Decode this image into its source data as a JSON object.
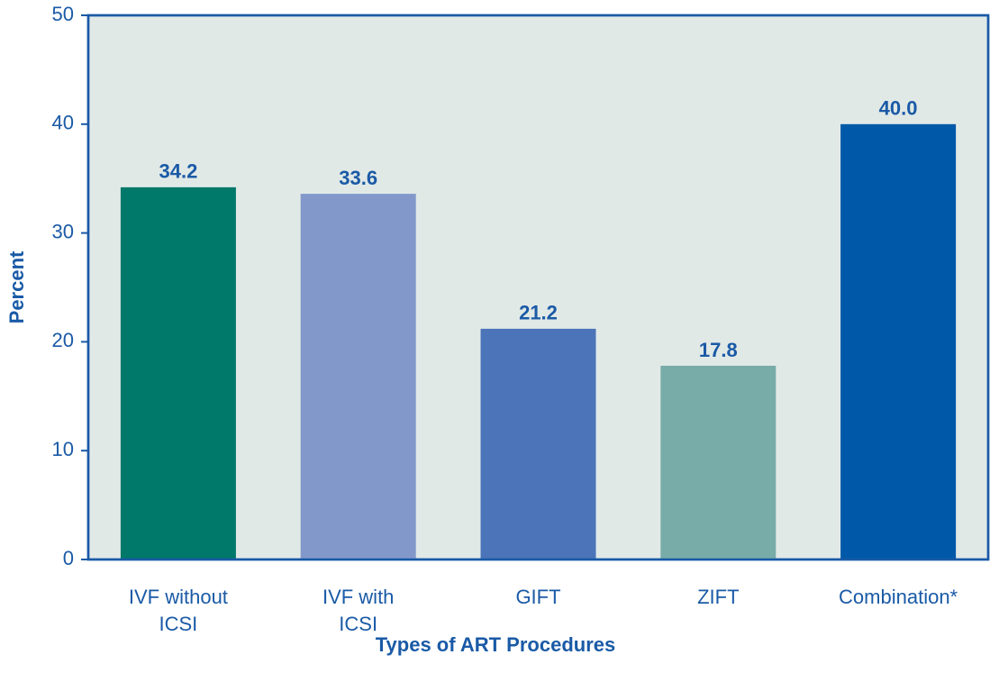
{
  "chart_data": {
    "type": "bar",
    "categories": [
      "IVF without\nICSI",
      "IVF with\nICSI",
      "GIFT",
      "ZIFT",
      "Combination*"
    ],
    "values": [
      34.2,
      33.6,
      21.2,
      17.8,
      40
    ],
    "value_labels": [
      "34.2",
      "33.6",
      "21.2",
      "17.8",
      "40.0"
    ],
    "colors": [
      "#00786a",
      "#8398ca",
      "#4b74b9",
      "#77aca9",
      "#0059a8"
    ],
    "x_label": "Types of ART Procedures",
    "y_label": "Percent",
    "ylim": [
      0,
      50
    ],
    "yticks": [
      0,
      10,
      20,
      30,
      40,
      50
    ],
    "grid": false
  }
}
